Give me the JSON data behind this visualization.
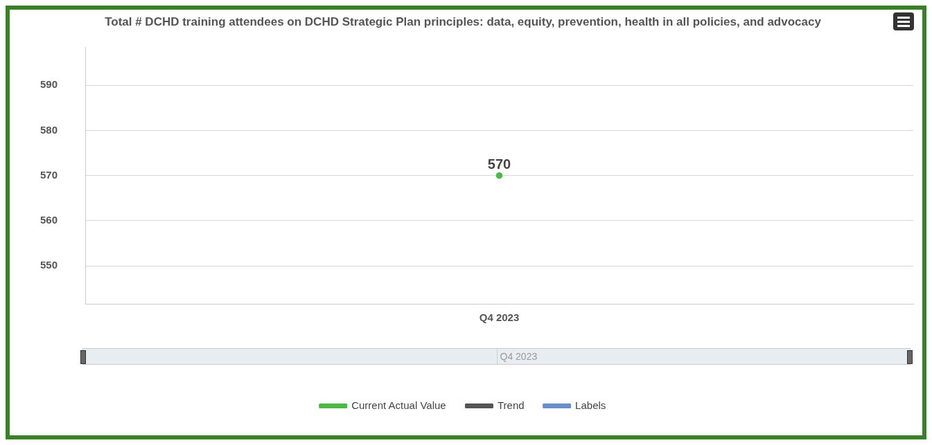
{
  "chart_data": {
    "type": "line",
    "title": "Total # DCHD training attendees on DCHD Strategic Plan principles: data, equity, prevention, health in all policies, and advocacy",
    "categories": [
      "Q4 2023"
    ],
    "series": [
      {
        "name": "Current Actual Value",
        "color": "#4cb848",
        "values": [
          570
        ]
      },
      {
        "name": "Trend",
        "color": "#555555",
        "values": [
          null
        ]
      },
      {
        "name": "Labels",
        "color": "#6a8fc8",
        "values": [
          null
        ]
      }
    ],
    "ylim": [
      541.6,
      598.4
    ],
    "yticks": [
      550,
      560,
      570,
      580,
      590
    ],
    "grid": "y",
    "legend": "bottom",
    "marker": "circle",
    "data_labels": true
  }
}
